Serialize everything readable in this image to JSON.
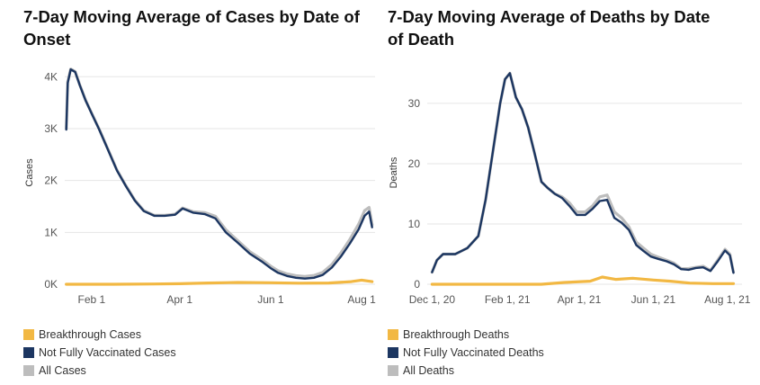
{
  "colors": {
    "breakthrough": "#f2b843",
    "not_vaccinated": "#1c3661",
    "all": "#bdbdbd",
    "grid": "#e6e6e6"
  },
  "charts": [
    {
      "title": "7-Day Moving Average of Cases by Date of Onset",
      "ylabel": "Cases",
      "legend": [
        "Breakthrough Cases",
        "Not Fully Vaccinated Cases",
        "All Cases"
      ]
    },
    {
      "title": "7-Day Moving Average of Deaths by Date of Death",
      "ylabel": "Deaths",
      "legend": [
        "Breakthrough Deaths",
        "Not Fully Vaccinated Deaths",
        "All Deaths"
      ]
    }
  ],
  "chart_data": [
    {
      "type": "line",
      "title": "7-Day Moving Average of Cases by Date of Onset",
      "ylabel": "Cases",
      "ylim": [
        0,
        4300
      ],
      "xlim": [
        "2021-01-14",
        "2021-08-10"
      ],
      "y_ticks": [
        0,
        1000,
        2000,
        3000,
        4000
      ],
      "y_tick_labels": [
        "0K",
        "1K",
        "2K",
        "3K",
        "4K"
      ],
      "x_ticks": [
        "2021-02-01",
        "2021-04-01",
        "2021-06-01",
        "2021-08-01"
      ],
      "x_tick_labels": [
        "Feb 1",
        "Apr 1",
        "Jun 1",
        "Aug 1"
      ],
      "grid": true,
      "legend_position": "bottom",
      "series": [
        {
          "name": "All Cases",
          "color": "#bdbdbd",
          "x": [
            "2021-01-15",
            "2021-01-16",
            "2021-01-18",
            "2021-01-21",
            "2021-01-24",
            "2021-01-28",
            "2021-02-01",
            "2021-02-06",
            "2021-02-12",
            "2021-02-18",
            "2021-02-24",
            "2021-03-02",
            "2021-03-08",
            "2021-03-15",
            "2021-03-22",
            "2021-03-29",
            "2021-04-03",
            "2021-04-10",
            "2021-04-18",
            "2021-04-25",
            "2021-05-02",
            "2021-05-10",
            "2021-05-18",
            "2021-05-26",
            "2021-06-01",
            "2021-06-06",
            "2021-06-12",
            "2021-06-18",
            "2021-06-24",
            "2021-06-30",
            "2021-07-06",
            "2021-07-12",
            "2021-07-18",
            "2021-07-24",
            "2021-07-30",
            "2021-08-03",
            "2021-08-06",
            "2021-08-08"
          ],
          "y": [
            3000,
            3900,
            4150,
            4100,
            3850,
            3550,
            3300,
            3000,
            2600,
            2200,
            1900,
            1620,
            1420,
            1330,
            1330,
            1350,
            1470,
            1400,
            1380,
            1310,
            1050,
            840,
            630,
            480,
            350,
            260,
            200,
            165,
            150,
            170,
            230,
            380,
            600,
            860,
            1160,
            1420,
            1480,
            1150
          ]
        },
        {
          "name": "Not Fully Vaccinated Cases",
          "color": "#1c3661",
          "x": [
            "2021-01-15",
            "2021-01-16",
            "2021-01-18",
            "2021-01-21",
            "2021-01-24",
            "2021-01-28",
            "2021-02-01",
            "2021-02-06",
            "2021-02-12",
            "2021-02-18",
            "2021-02-24",
            "2021-03-02",
            "2021-03-08",
            "2021-03-15",
            "2021-03-22",
            "2021-03-29",
            "2021-04-03",
            "2021-04-10",
            "2021-04-18",
            "2021-04-25",
            "2021-05-02",
            "2021-05-10",
            "2021-05-18",
            "2021-05-26",
            "2021-06-01",
            "2021-06-06",
            "2021-06-12",
            "2021-06-18",
            "2021-06-24",
            "2021-06-30",
            "2021-07-06",
            "2021-07-12",
            "2021-07-18",
            "2021-07-24",
            "2021-07-30",
            "2021-08-03",
            "2021-08-06",
            "2021-08-08"
          ],
          "y": [
            2980,
            3880,
            4140,
            4090,
            3840,
            3540,
            3290,
            2990,
            2590,
            2190,
            1890,
            1610,
            1410,
            1320,
            1320,
            1340,
            1460,
            1380,
            1350,
            1270,
            1000,
            800,
            590,
            440,
            310,
            220,
            160,
            125,
            110,
            125,
            180,
            320,
            530,
            780,
            1060,
            1320,
            1400,
            1100
          ]
        },
        {
          "name": "Breakthrough Cases",
          "color": "#f2b843",
          "x": [
            "2021-01-15",
            "2021-02-15",
            "2021-03-15",
            "2021-04-01",
            "2021-04-20",
            "2021-05-10",
            "2021-06-01",
            "2021-06-20",
            "2021-07-10",
            "2021-07-25",
            "2021-08-01",
            "2021-08-08"
          ],
          "y": [
            0,
            0,
            5,
            10,
            25,
            35,
            30,
            20,
            25,
            50,
            80,
            50
          ]
        }
      ]
    },
    {
      "type": "line",
      "title": "7-Day Moving Average of Deaths by Date of Death",
      "ylabel": "Deaths",
      "ylim": [
        0,
        37
      ],
      "xlim": [
        "2020-11-27",
        "2021-08-13"
      ],
      "y_ticks": [
        0,
        10,
        20,
        30
      ],
      "y_tick_labels": [
        "0",
        "10",
        "20",
        "30"
      ],
      "x_ticks": [
        "2020-12-01",
        "2021-02-01",
        "2021-04-01",
        "2021-06-01",
        "2021-08-01"
      ],
      "x_tick_labels": [
        "Dec 1, 20",
        "Feb 1, 21",
        "Apr 1, 21",
        "Jun 1, 21",
        "Aug 1, 21"
      ],
      "grid": true,
      "legend_position": "bottom",
      "series": [
        {
          "name": "All Deaths",
          "color": "#bdbdbd",
          "x": [
            "2020-12-01",
            "2020-12-05",
            "2020-12-10",
            "2020-12-20",
            "2020-12-30",
            "2021-01-08",
            "2021-01-14",
            "2021-01-20",
            "2021-01-26",
            "2021-01-30",
            "2021-02-03",
            "2021-02-08",
            "2021-02-13",
            "2021-02-18",
            "2021-02-23",
            "2021-03-01",
            "2021-03-06",
            "2021-03-12",
            "2021-03-18",
            "2021-03-24",
            "2021-03-30",
            "2021-04-06",
            "2021-04-12",
            "2021-04-18",
            "2021-04-24",
            "2021-04-30",
            "2021-05-06",
            "2021-05-12",
            "2021-05-18",
            "2021-05-24",
            "2021-05-30",
            "2021-06-05",
            "2021-06-12",
            "2021-06-18",
            "2021-06-24",
            "2021-06-30",
            "2021-07-06",
            "2021-07-12",
            "2021-07-18",
            "2021-07-24",
            "2021-07-30",
            "2021-08-03",
            "2021-08-06"
          ],
          "y": [
            2,
            4,
            5,
            5,
            6,
            8,
            14,
            22,
            30,
            34,
            35,
            31,
            29,
            26,
            22,
            17,
            16,
            15,
            14.5,
            13.5,
            12,
            12,
            13,
            14.5,
            14.8,
            12,
            11,
            9.5,
            7,
            6,
            5,
            4.5,
            4,
            3.5,
            2.6,
            2.6,
            2.8,
            3,
            2.3,
            4,
            5.8,
            5,
            2
          ]
        },
        {
          "name": "Not Fully Vaccinated Deaths",
          "color": "#1c3661",
          "x": [
            "2020-12-01",
            "2020-12-05",
            "2020-12-10",
            "2020-12-20",
            "2020-12-30",
            "2021-01-08",
            "2021-01-14",
            "2021-01-20",
            "2021-01-26",
            "2021-01-30",
            "2021-02-03",
            "2021-02-08",
            "2021-02-13",
            "2021-02-18",
            "2021-02-23",
            "2021-03-01",
            "2021-03-06",
            "2021-03-12",
            "2021-03-18",
            "2021-03-24",
            "2021-03-30",
            "2021-04-06",
            "2021-04-12",
            "2021-04-18",
            "2021-04-24",
            "2021-04-30",
            "2021-05-06",
            "2021-05-12",
            "2021-05-18",
            "2021-05-24",
            "2021-05-30",
            "2021-06-05",
            "2021-06-12",
            "2021-06-18",
            "2021-06-24",
            "2021-06-30",
            "2021-07-06",
            "2021-07-12",
            "2021-07-18",
            "2021-07-24",
            "2021-07-30",
            "2021-08-03",
            "2021-08-06"
          ],
          "y": [
            2,
            4,
            5,
            5,
            6,
            8,
            14,
            22,
            30,
            34,
            35,
            31,
            29,
            26,
            22,
            17,
            16,
            15,
            14.3,
            13,
            11.5,
            11.5,
            12.5,
            13.8,
            14,
            11,
            10.2,
            9,
            6.5,
            5.5,
            4.6,
            4.2,
            3.8,
            3.3,
            2.5,
            2.4,
            2.7,
            2.8,
            2.2,
            3.8,
            5.6,
            4.8,
            1.9
          ]
        },
        {
          "name": "Breakthrough Deaths",
          "color": "#f2b843",
          "x": [
            "2020-12-01",
            "2021-02-01",
            "2021-03-01",
            "2021-03-20",
            "2021-04-10",
            "2021-04-20",
            "2021-05-01",
            "2021-05-15",
            "2021-06-01",
            "2021-06-15",
            "2021-07-01",
            "2021-07-20",
            "2021-08-06"
          ],
          "y": [
            0,
            0,
            0,
            0.3,
            0.5,
            1.2,
            0.8,
            1.0,
            0.7,
            0.5,
            0.2,
            0.1,
            0.1
          ]
        }
      ]
    }
  ]
}
